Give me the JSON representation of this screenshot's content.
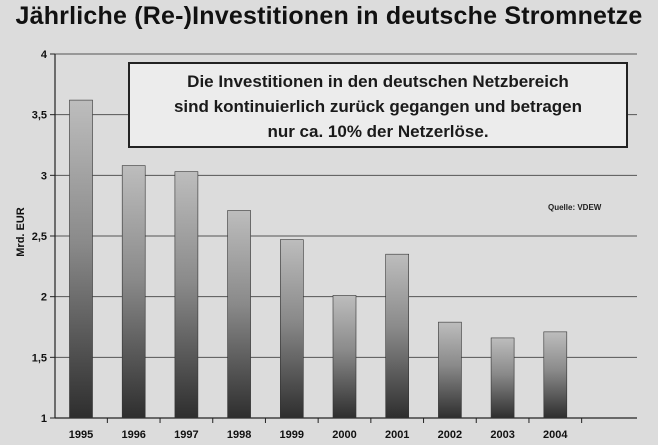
{
  "chart_data": {
    "type": "bar",
    "title": "Jährliche (Re-)Investitionen in deutsche Stromnetze",
    "ylabel": "Mrd. EUR",
    "xlabel": "",
    "categories": [
      "1995",
      "1996",
      "1997",
      "1998",
      "1999",
      "2000",
      "2001",
      "2002",
      "2003",
      "2004"
    ],
    "values": [
      3.62,
      3.08,
      3.03,
      2.71,
      2.47,
      2.01,
      2.35,
      1.79,
      1.66,
      1.71
    ],
    "ylim": [
      1,
      4
    ],
    "yticks": [
      1,
      1.5,
      2,
      2.5,
      3,
      3.5,
      4
    ],
    "ytick_labels": [
      "1",
      "1,5",
      "2",
      "2,5",
      "3",
      "3,5",
      "4"
    ],
    "grid": true,
    "annotation": {
      "lines": [
        "Die Investitionen in den deutschen Netzbereich",
        "sind kontinuierlich zurück gegangen und betragen",
        "nur ca. 10% der Netzerlöse."
      ]
    },
    "source": "Quelle: VDEW"
  }
}
